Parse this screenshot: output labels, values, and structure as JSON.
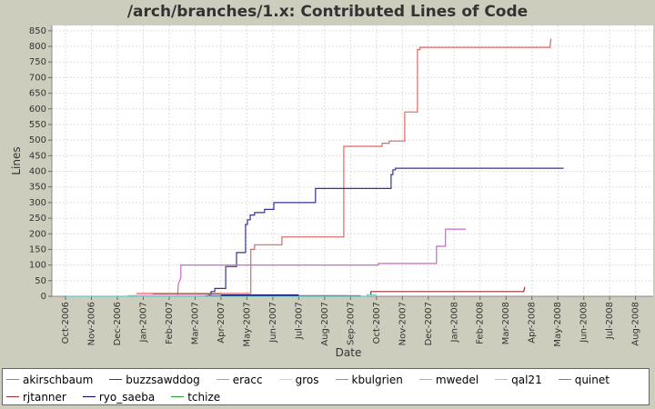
{
  "chart_data": {
    "type": "step-line",
    "title": "/arch/branches/1.x: Contributed Lines of Code",
    "x_label": "Date",
    "y_label": "Lines",
    "xlim": [
      2006.706,
      2008.64
    ],
    "ylim": [
      0,
      867
    ],
    "xticks": [
      {
        "value": 2006.75,
        "label": "Oct-2006"
      },
      {
        "value": 2006.8333,
        "label": "Nov-2006"
      },
      {
        "value": 2006.9167,
        "label": "Dec-2006"
      },
      {
        "value": 2007.0,
        "label": "Jan-2007"
      },
      {
        "value": 2007.0833,
        "label": "Feb-2007"
      },
      {
        "value": 2007.1667,
        "label": "Mar-2007"
      },
      {
        "value": 2007.25,
        "label": "Apr-2007"
      },
      {
        "value": 2007.3333,
        "label": "May-2007"
      },
      {
        "value": 2007.4167,
        "label": "Jun-2007"
      },
      {
        "value": 2007.5,
        "label": "Jul-2007"
      },
      {
        "value": 2007.5833,
        "label": "Aug-2007"
      },
      {
        "value": 2007.6667,
        "label": "Sep-2007"
      },
      {
        "value": 2007.75,
        "label": "Oct-2007"
      },
      {
        "value": 2007.8333,
        "label": "Nov-2007"
      },
      {
        "value": 2007.9167,
        "label": "Dec-2007"
      },
      {
        "value": 2008.0,
        "label": "Jan-2008"
      },
      {
        "value": 2008.0833,
        "label": "Feb-2008"
      },
      {
        "value": 2008.1667,
        "label": "Mar-2008"
      },
      {
        "value": 2008.25,
        "label": "Apr-2008"
      },
      {
        "value": 2008.3333,
        "label": "May-2008"
      },
      {
        "value": 2008.4167,
        "label": "Jun-2008"
      },
      {
        "value": 2008.5,
        "label": "Jul-2008"
      },
      {
        "value": 2008.5833,
        "label": "Aug-2008"
      }
    ],
    "yticks": [
      0,
      50,
      100,
      150,
      200,
      250,
      300,
      350,
      400,
      450,
      500,
      550,
      600,
      650,
      700,
      750,
      800,
      850
    ],
    "grid": true,
    "series": [
      {
        "name": "akirschbaum",
        "color": "#e06666",
        "x": [
          2006.978,
          2007.346,
          2007.346,
          2007.358,
          2007.358,
          2007.446,
          2007.446,
          2007.645,
          2007.645,
          2007.768,
          2007.768,
          2007.791,
          2007.791,
          2007.841,
          2007.841,
          2007.882,
          2007.882,
          2007.89,
          2007.89,
          2008.308,
          2008.311
        ],
        "values": [
          9,
          9,
          150,
          150,
          165,
          165,
          190,
          190,
          480,
          480,
          490,
          490,
          497,
          497,
          590,
          590,
          790,
          790,
          797,
          797,
          825
        ]
      },
      {
        "name": "buzzsawddog",
        "color": "#333399",
        "x": [
          2007.209,
          2007.218,
          2007.218,
          2007.23,
          2007.23,
          2007.265,
          2007.265,
          2007.3,
          2007.3,
          2007.329,
          2007.329,
          2007.335,
          2007.335,
          2007.344,
          2007.344,
          2007.358,
          2007.358,
          2007.39,
          2007.39,
          2007.42,
          2007.42,
          2007.554,
          2007.554,
          2007.797,
          2007.797,
          2007.803,
          2007.803,
          2007.811,
          2007.811,
          2008.352
        ],
        "values": [
          5,
          5,
          15,
          15,
          25,
          25,
          95,
          95,
          140,
          140,
          230,
          230,
          245,
          245,
          260,
          260,
          268,
          268,
          278,
          278,
          300,
          300,
          345,
          345,
          390,
          390,
          405,
          405,
          410,
          410
        ]
      },
      {
        "name": "eracc",
        "color": "#66cc66",
        "x": [
          2006.95,
          2007.65
        ],
        "values": [
          2,
          2
        ]
      },
      {
        "name": "gros",
        "color": "#ffcc66",
        "x": [
          2007.1,
          2007.6
        ],
        "values": [
          1,
          1
        ]
      },
      {
        "name": "kbulgrien",
        "color": "#cc66cc",
        "x": [
          2007.11,
          2007.113,
          2007.121,
          2007.121,
          2007.756,
          2007.756,
          2007.943,
          2007.943,
          2007.972,
          2007.972,
          2008.037
        ],
        "values": [
          0,
          40,
          60,
          100,
          100,
          105,
          105,
          160,
          160,
          215,
          215
        ]
      },
      {
        "name": "mwedel",
        "color": "#66cccc",
        "x": [
          2006.75,
          2007.72,
          2007.72,
          2007.75
        ],
        "values": [
          0,
          0,
          5,
          5
        ]
      },
      {
        "name": "qal21",
        "color": "#ff99cc",
        "x": [
          2006.98,
          2007.3
        ],
        "values": [
          3,
          3
        ]
      },
      {
        "name": "quinet",
        "color": "#9966cc",
        "x": [
          2007.2,
          2007.7
        ],
        "values": [
          2,
          2
        ]
      },
      {
        "name": "rjtanner",
        "color": "#993333",
        "x": [
          2007.732,
          2007.732,
          2008.224,
          2008.227
        ],
        "values": [
          5,
          15,
          15,
          30
        ]
      },
      {
        "name": "ryo_saeba",
        "color": "#000066",
        "x": [
          2007.25,
          2007.5
        ],
        "values": [
          4,
          4
        ]
      },
      {
        "name": "tchize",
        "color": "#339933",
        "x": [
          2007.03,
          2007.25
        ],
        "values": [
          8,
          8
        ]
      }
    ]
  }
}
